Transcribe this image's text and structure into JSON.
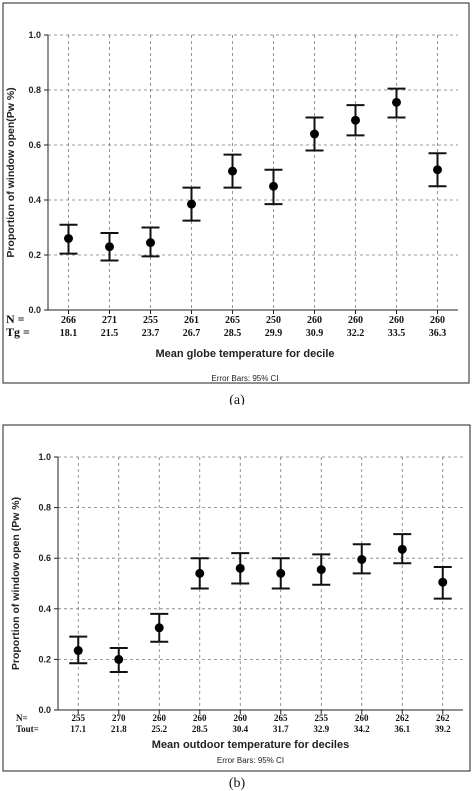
{
  "chart_data": [
    {
      "type": "scatter",
      "panel_label": "(a)",
      "xlabel": "Mean globe temperature for decile",
      "ylabel": "Proportion of window open(Pw %)",
      "ylim": [
        0,
        1.0
      ],
      "yticks": [
        "0.0",
        "0.2",
        "0.4",
        "0.6",
        "0.8",
        "1.0"
      ],
      "grid": true,
      "row1_label": "N =",
      "row2_label": "Tg =",
      "note": "Error Bars: 95% CI",
      "points": [
        {
          "n": "266",
          "temp": "18.1",
          "mean": 0.26,
          "lower": 0.205,
          "upper": 0.31
        },
        {
          "n": "271",
          "temp": "21.5",
          "mean": 0.23,
          "lower": 0.18,
          "upper": 0.28
        },
        {
          "n": "255",
          "temp": "23.7",
          "mean": 0.245,
          "lower": 0.195,
          "upper": 0.3
        },
        {
          "n": "261",
          "temp": "26.7",
          "mean": 0.385,
          "lower": 0.325,
          "upper": 0.445
        },
        {
          "n": "265",
          "temp": "28.5",
          "mean": 0.505,
          "lower": 0.445,
          "upper": 0.565
        },
        {
          "n": "250",
          "temp": "29.9",
          "mean": 0.45,
          "lower": 0.385,
          "upper": 0.51
        },
        {
          "n": "260",
          "temp": "30.9",
          "mean": 0.64,
          "lower": 0.58,
          "upper": 0.7
        },
        {
          "n": "260",
          "temp": "32.2",
          "mean": 0.69,
          "lower": 0.635,
          "upper": 0.745
        },
        {
          "n": "260",
          "temp": "33.5",
          "mean": 0.755,
          "lower": 0.7,
          "upper": 0.805
        },
        {
          "n": "260",
          "temp": "36.3",
          "mean": 0.51,
          "lower": 0.45,
          "upper": 0.57
        }
      ]
    },
    {
      "type": "scatter",
      "panel_label": "(b)",
      "xlabel": "Mean outdoor temperature for deciles",
      "ylabel": "Proportion of window open (Pw %)",
      "ylim": [
        0,
        1.0
      ],
      "yticks": [
        "0.0",
        "0.2",
        "0.4",
        "0.6",
        "0.8",
        "1.0"
      ],
      "grid": true,
      "row1_label": "N=",
      "row2_label": "Tout=",
      "note": "Error Bars: 95% CI",
      "points": [
        {
          "n": "255",
          "temp": "17.1",
          "mean": 0.235,
          "lower": 0.185,
          "upper": 0.29
        },
        {
          "n": "270",
          "temp": "21.8",
          "mean": 0.2,
          "lower": 0.15,
          "upper": 0.245
        },
        {
          "n": "260",
          "temp": "25.2",
          "mean": 0.325,
          "lower": 0.27,
          "upper": 0.38
        },
        {
          "n": "260",
          "temp": "28.5",
          "mean": 0.54,
          "lower": 0.48,
          "upper": 0.6
        },
        {
          "n": "260",
          "temp": "30.4",
          "mean": 0.56,
          "lower": 0.5,
          "upper": 0.62
        },
        {
          "n": "265",
          "temp": "31.7",
          "mean": 0.54,
          "lower": 0.48,
          "upper": 0.6
        },
        {
          "n": "255",
          "temp": "32.9",
          "mean": 0.555,
          "lower": 0.495,
          "upper": 0.615
        },
        {
          "n": "260",
          "temp": "34.2",
          "mean": 0.595,
          "lower": 0.54,
          "upper": 0.655
        },
        {
          "n": "262",
          "temp": "36.1",
          "mean": 0.635,
          "lower": 0.58,
          "upper": 0.695
        },
        {
          "n": "262",
          "temp": "39.2",
          "mean": 0.505,
          "lower": 0.44,
          "upper": 0.565
        }
      ]
    }
  ]
}
